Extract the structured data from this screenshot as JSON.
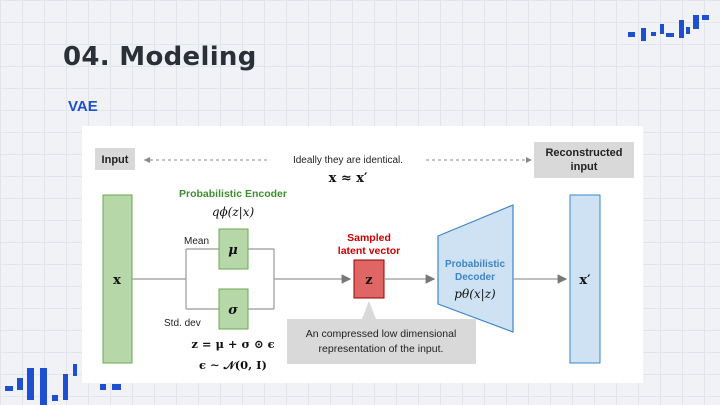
{
  "slide": {
    "title": "04. Modeling",
    "subtitle": "VAE"
  },
  "diagram": {
    "input_label": "Input",
    "identical_line1": "Ideally they are identical.",
    "identical_line2": "x ≈ x′",
    "reconstructed_line1": "Reconstructed",
    "reconstructed_line2": "input",
    "encoder_title": "Probabilistic Encoder",
    "encoder_formula": "qϕ(z|x)",
    "x_symbol": "x",
    "mean_label": "Mean",
    "mu_symbol": "μ",
    "sigma_symbol": "σ",
    "std_label": "Std. dev",
    "reparam_formula": "z = μ + σ ⊙ ϵ",
    "epsilon_formula": "ϵ ∼ 𝒩(0, I)",
    "sampled_line1": "Sampled",
    "sampled_line2": "latent vector",
    "z_symbol": "z",
    "decoder_line1": "Probabilistic",
    "decoder_line2": "Decoder",
    "decoder_formula": "pθ(x|z)",
    "xprime_symbol": "x′",
    "callout_line1": "An compressed low dimensional",
    "callout_line2": "representation of the input."
  },
  "colors": {
    "accent_blue": "#1f4fd1",
    "encoder_green": "#b6d7a8",
    "encoder_title_green": "#3d8f2f",
    "latent_red": "#e06666",
    "latent_label_red": "#cc0000",
    "decoder_blue": "#cfe2f3",
    "decoder_title_blue": "#3d85c6"
  }
}
